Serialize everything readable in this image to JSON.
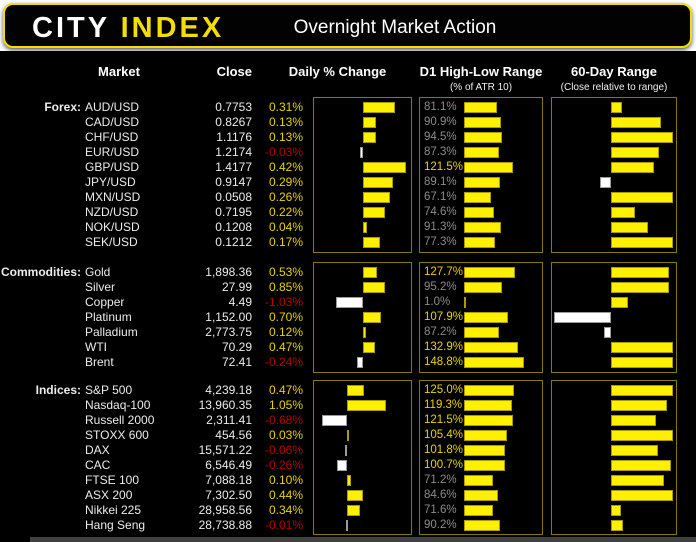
{
  "header": {
    "logo_city": "CITY",
    "logo_index": "INDEX",
    "title": "Overnight Market Action"
  },
  "columns": {
    "market": "Market",
    "close": "Close",
    "daily": "Daily % Change",
    "d1": "D1 High-Low Range",
    "d1_sub": "(% of ATR 10)",
    "range60": "60-Day Range",
    "range60_sub": "(Close relative to range)"
  },
  "colors": {
    "brand_yellow": "#f2df00",
    "bar_yellow": "#fff000",
    "positive_text": "#e8d200",
    "negative_text": "#b80000",
    "hot_pct_text": "#f2e000",
    "cool_pct_text": "#8c8c8c",
    "panel_border": "#857a08",
    "white_text": "#ececec"
  },
  "chart_data": {
    "type": "table",
    "note": "Each group has bar sparklines: daily % change (yellow pos / white neg), D1 high-low range as % of ATR10 (bar scaled to max 148.8), and close position relative to 60-day range (estimated fraction, negative = white bar left of baseline)",
    "groups": [
      {
        "label": "Forex:",
        "rows": [
          {
            "market": "AUD/USD",
            "close": "0.7753",
            "daily_pct": 0.31,
            "d1_range_pct": 81.1,
            "range60_rel": 0.18
          },
          {
            "market": "CAD/USD",
            "close": "0.8267",
            "daily_pct": 0.13,
            "d1_range_pct": 90.9,
            "range60_rel": 0.8
          },
          {
            "market": "CHF/USD",
            "close": "1.1176",
            "daily_pct": 0.13,
            "d1_range_pct": 94.5,
            "range60_rel": 1.0
          },
          {
            "market": "EUR/USD",
            "close": "1.2174",
            "daily_pct": -0.03,
            "d1_range_pct": 87.3,
            "range60_rel": 0.77
          },
          {
            "market": "GBP/USD",
            "close": "1.4177",
            "daily_pct": 0.42,
            "d1_range_pct": 121.5,
            "range60_rel": 0.7
          },
          {
            "market": "JPY/USD",
            "close": "0.9147",
            "daily_pct": 0.29,
            "d1_range_pct": 89.1,
            "range60_rel": -0.2
          },
          {
            "market": "MXN/USD",
            "close": "0.0508",
            "daily_pct": 0.26,
            "d1_range_pct": 67.1,
            "range60_rel": 1.0
          },
          {
            "market": "NZD/USD",
            "close": "0.7195",
            "daily_pct": 0.22,
            "d1_range_pct": 74.6,
            "range60_rel": 0.38
          },
          {
            "market": "NOK/USD",
            "close": "0.1208",
            "daily_pct": 0.04,
            "d1_range_pct": 91.3,
            "range60_rel": 0.6
          },
          {
            "market": "SEK/USD",
            "close": "0.1212",
            "daily_pct": 0.17,
            "d1_range_pct": 77.3,
            "range60_rel": 1.0
          }
        ]
      },
      {
        "label": "Commodities:",
        "rows": [
          {
            "market": "Gold",
            "close": "1,898.36",
            "daily_pct": 0.53,
            "d1_range_pct": 127.7,
            "range60_rel": 0.93
          },
          {
            "market": "Silver",
            "close": "27.99",
            "daily_pct": 0.85,
            "d1_range_pct": 95.2,
            "range60_rel": 0.93
          },
          {
            "market": "Copper",
            "close": "4.49",
            "daily_pct": -1.03,
            "d1_range_pct": 1.0,
            "range60_rel": 0.27
          },
          {
            "market": "Platinum",
            "close": "1,152.00",
            "daily_pct": 0.7,
            "d1_range_pct": 107.9,
            "range60_rel": -1.0
          },
          {
            "market": "Palladium",
            "close": "2,773.75",
            "daily_pct": 0.12,
            "d1_range_pct": 87.2,
            "range60_rel": -0.12
          },
          {
            "market": "WTI",
            "close": "70.29",
            "daily_pct": 0.47,
            "d1_range_pct": 132.9,
            "range60_rel": 1.0
          },
          {
            "market": "Brent",
            "close": "72.41",
            "daily_pct": -0.24,
            "d1_range_pct": 148.8,
            "range60_rel": 1.0
          }
        ]
      },
      {
        "label": "Indices:",
        "rows": [
          {
            "market": "S&P 500",
            "close": "4,239.18",
            "daily_pct": 0.47,
            "d1_range_pct": 125.0,
            "range60_rel": 1.0
          },
          {
            "market": "Nasdaq-100",
            "close": "13,960.35",
            "daily_pct": 1.05,
            "d1_range_pct": 119.3,
            "range60_rel": 0.9
          },
          {
            "market": "Russell 2000",
            "close": "2,311.41",
            "daily_pct": -0.68,
            "d1_range_pct": 121.5,
            "range60_rel": 0.73
          },
          {
            "market": "STOXX 600",
            "close": "454.56",
            "daily_pct": 0.03,
            "d1_range_pct": 105.4,
            "range60_rel": 1.0
          },
          {
            "market": "DAX",
            "close": "15,571.22",
            "daily_pct": -0.06,
            "d1_range_pct": 101.8,
            "range60_rel": 0.75
          },
          {
            "market": "CAC",
            "close": "6,546.49",
            "daily_pct": -0.26,
            "d1_range_pct": 100.7,
            "range60_rel": 0.97
          },
          {
            "market": "FTSE 100",
            "close": "7,088.18",
            "daily_pct": 0.1,
            "d1_range_pct": 71.2,
            "range60_rel": 0.86
          },
          {
            "market": "ASX 200",
            "close": "7,302.50",
            "daily_pct": 0.44,
            "d1_range_pct": 84.6,
            "range60_rel": 1.0
          },
          {
            "market": "Nikkei 225",
            "close": "28,958.56",
            "daily_pct": 0.34,
            "d1_range_pct": 71.6,
            "range60_rel": 0.16
          },
          {
            "market": "Hang Seng",
            "close": "28,738.88",
            "daily_pct": -0.01,
            "d1_range_pct": 90.2,
            "range60_rel": 0.2
          }
        ]
      }
    ]
  }
}
